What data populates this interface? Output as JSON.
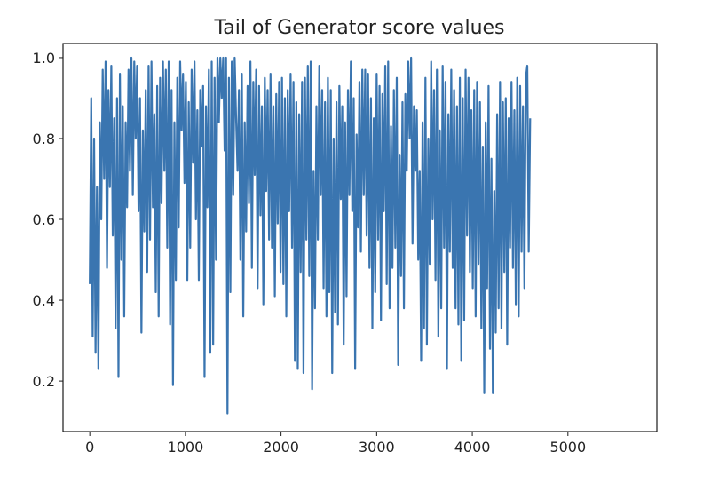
{
  "chart_data": {
    "type": "line",
    "title": "Tail of Generator score values",
    "xlabel": "",
    "ylabel": "",
    "xlim": [
      -280,
      5930
    ],
    "ylim": [
      0.075,
      1.035
    ],
    "x_ticks": [
      {
        "value": 0,
        "label": "0"
      },
      {
        "value": 1000,
        "label": "1000"
      },
      {
        "value": 2000,
        "label": "2000"
      },
      {
        "value": 3000,
        "label": "3000"
      },
      {
        "value": 4000,
        "label": "4000"
      },
      {
        "value": 5000,
        "label": "5000"
      }
    ],
    "y_ticks": [
      {
        "value": 0.2,
        "label": "0.2"
      },
      {
        "value": 0.4,
        "label": "0.4"
      },
      {
        "value": 0.6,
        "label": "0.6"
      },
      {
        "value": 0.8,
        "label": "0.8"
      },
      {
        "value": 1.0,
        "label": "1.0"
      }
    ],
    "grid": false,
    "series": [
      {
        "color": "#3a75b0",
        "x_start": 0,
        "x_step": 15,
        "y": [
          0.44,
          0.9,
          0.31,
          0.8,
          0.27,
          0.68,
          0.23,
          0.84,
          0.6,
          0.97,
          0.7,
          0.99,
          0.48,
          0.92,
          0.68,
          0.98,
          0.56,
          0.85,
          0.33,
          0.9,
          0.21,
          0.96,
          0.5,
          0.88,
          0.36,
          0.84,
          0.63,
          0.97,
          0.72,
          1.0,
          0.66,
          0.99,
          0.8,
          0.98,
          0.62,
          0.9,
          0.32,
          0.82,
          0.57,
          0.92,
          0.47,
          0.98,
          0.55,
          0.99,
          0.63,
          0.86,
          0.42,
          0.93,
          0.36,
          0.95,
          0.64,
          0.99,
          0.72,
          0.97,
          0.53,
          0.99,
          0.34,
          0.92,
          0.19,
          0.84,
          0.45,
          0.95,
          0.58,
          0.99,
          0.82,
          0.96,
          0.69,
          0.94,
          0.45,
          0.89,
          0.53,
          0.97,
          0.74,
          0.99,
          0.6,
          0.87,
          0.45,
          0.92,
          0.78,
          0.93,
          0.21,
          0.88,
          0.63,
          0.97,
          0.27,
          0.99,
          0.29,
          0.95,
          0.5,
          1.0,
          0.84,
          1.0,
          0.9,
          1.0,
          0.77,
          1.0,
          0.12,
          0.95,
          0.42,
          0.99,
          0.66,
          1.0,
          0.85,
          0.72,
          0.92,
          0.5,
          0.96,
          0.36,
          0.84,
          0.57,
          0.93,
          0.64,
          0.99,
          0.48,
          0.94,
          0.71,
          0.97,
          0.43,
          0.93,
          0.61,
          0.88,
          0.39,
          0.95,
          0.67,
          0.92,
          0.55,
          0.96,
          0.53,
          0.88,
          0.41,
          0.91,
          0.59,
          0.94,
          0.47,
          0.95,
          0.44,
          0.9,
          0.36,
          0.92,
          0.62,
          0.96,
          0.53,
          0.94,
          0.25,
          0.89,
          0.23,
          0.86,
          0.47,
          0.94,
          0.22,
          0.95,
          0.55,
          0.98,
          0.46,
          0.99,
          0.18,
          0.72,
          0.38,
          0.88,
          0.55,
          0.98,
          0.66,
          0.92,
          0.43,
          0.89,
          0.36,
          0.95,
          0.42,
          0.92,
          0.22,
          0.8,
          0.37,
          0.89,
          0.34,
          0.93,
          0.65,
          0.88,
          0.29,
          0.84,
          0.41,
          0.92,
          0.66,
          0.99,
          0.62,
          0.9,
          0.23,
          0.81,
          0.58,
          0.94,
          0.52,
          0.97,
          0.66,
          0.97,
          0.56,
          0.96,
          0.48,
          0.9,
          0.33,
          0.85,
          0.42,
          0.96,
          0.55,
          0.93,
          0.35,
          0.91,
          0.62,
          0.98,
          0.44,
          0.99,
          0.38,
          0.83,
          0.48,
          0.92,
          0.53,
          0.95,
          0.24,
          0.76,
          0.46,
          0.89,
          0.38,
          0.91,
          0.72,
          0.99,
          0.8,
          1.0,
          0.54,
          0.88,
          0.72,
          0.87,
          0.5,
          0.72,
          0.25,
          0.84,
          0.33,
          0.95,
          0.29,
          0.8,
          0.49,
          0.99,
          0.6,
          0.92,
          0.45,
          0.97,
          0.31,
          0.82,
          0.38,
          0.98,
          0.53,
          0.94,
          0.23,
          0.86,
          0.52,
          0.97,
          0.48,
          0.92,
          0.38,
          0.88,
          0.34,
          0.95,
          0.25,
          0.9,
          0.35,
          0.97,
          0.56,
          0.95,
          0.47,
          0.87,
          0.43,
          0.92,
          0.36,
          0.94,
          0.49,
          0.89,
          0.33,
          0.78,
          0.17,
          0.84,
          0.43,
          0.93,
          0.28,
          0.75,
          0.17,
          0.67,
          0.32,
          0.86,
          0.38,
          0.94,
          0.33,
          0.89,
          0.47,
          0.9,
          0.29,
          0.85,
          0.53,
          0.94,
          0.48,
          0.87,
          0.39,
          0.95,
          0.36,
          0.93,
          0.52,
          0.88,
          0.43,
          0.95,
          0.98,
          0.52,
          0.85
        ]
      }
    ]
  }
}
